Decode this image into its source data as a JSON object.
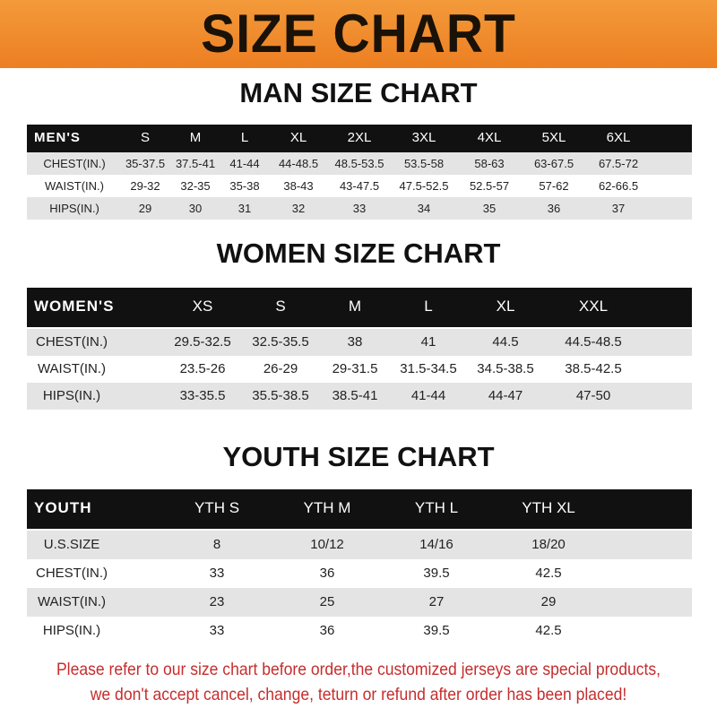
{
  "banner": {
    "title": "SIZE CHART",
    "color": "#ef8a2a"
  },
  "men": {
    "title": "MAN SIZE CHART",
    "header": [
      "MEN'S",
      "S",
      "M",
      "L",
      "XL",
      "2XL",
      "3XL",
      "4XL",
      "5XL",
      "6XL"
    ],
    "rows": [
      [
        "CHEST(IN.)",
        "35-37.5",
        "37.5-41",
        "41-44",
        "44-48.5",
        "48.5-53.5",
        "53.5-58",
        "58-63",
        "63-67.5",
        "67.5-72"
      ],
      [
        "WAIST(IN.)",
        "29-32",
        "32-35",
        "35-38",
        "38-43",
        "43-47.5",
        "47.5-52.5",
        "52.5-57",
        "57-62",
        "62-66.5"
      ],
      [
        "HIPS(IN.)",
        "29",
        "30",
        "31",
        "32",
        "33",
        "34",
        "35",
        "36",
        "37"
      ]
    ]
  },
  "women": {
    "title": "WOMEN SIZE CHART",
    "header": [
      "WOMEN'S",
      "XS",
      "S",
      "M",
      "L",
      "XL",
      "XXL"
    ],
    "rows": [
      [
        "CHEST(IN.)",
        "29.5-32.5",
        "32.5-35.5",
        "38",
        "41",
        "44.5",
        "44.5-48.5"
      ],
      [
        "WAIST(IN.)",
        "23.5-26",
        "26-29",
        "29-31.5",
        "31.5-34.5",
        "34.5-38.5",
        "38.5-42.5"
      ],
      [
        "HIPS(IN.)",
        "33-35.5",
        "35.5-38.5",
        "38.5-41",
        "41-44",
        "44-47",
        "47-50"
      ]
    ]
  },
  "youth": {
    "title": "YOUTH SIZE CHART",
    "header": [
      "YOUTH",
      "YTH S",
      "YTH M",
      "YTH L",
      "YTH XL"
    ],
    "rows": [
      [
        "U.S.SIZE",
        "8",
        "10/12",
        "14/16",
        "18/20"
      ],
      [
        "CHEST(IN.)",
        "33",
        "36",
        "39.5",
        "42.5"
      ],
      [
        "WAIST(IN.)",
        "23",
        "25",
        "27",
        "29"
      ],
      [
        "HIPS(IN.)",
        "33",
        "36",
        "39.5",
        "42.5"
      ]
    ]
  },
  "notice": {
    "line1": "Please refer to our size chart before order,the customized jerseys are special products,",
    "line2": "we don't accept cancel, change, teturn or refund after order has been placed!",
    "color": "#c62d2d"
  }
}
